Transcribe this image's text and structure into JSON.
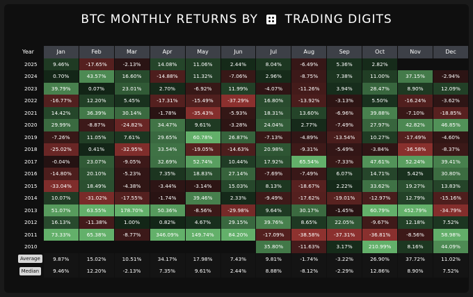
{
  "title": {
    "left": "BTC MONTHLY RETURNS BY",
    "right": "TRADING DIGITS"
  },
  "header": {
    "year_label": "Year",
    "months": [
      "Jan",
      "Feb",
      "Mar",
      "Apr",
      "May",
      "Jun",
      "Jul",
      "Aug",
      "Sep",
      "Oct",
      "Nov",
      "Dec"
    ]
  },
  "rows": [
    {
      "year": "2025",
      "values": [
        "9.46%",
        "-17.65%",
        "-2.13%",
        "14.08%",
        "11.06%",
        "2.44%",
        "8.04%",
        "-6.49%",
        "5.36%",
        "2.82%",
        "",
        ""
      ]
    },
    {
      "year": "2024",
      "values": [
        "0.70%",
        "43.57%",
        "16.60%",
        "-14.88%",
        "11.32%",
        "-7.06%",
        "2.96%",
        "-8.75%",
        "7.38%",
        "11.00%",
        "37.15%",
        "-2.94%"
      ]
    },
    {
      "year": "2023",
      "values": [
        "39.79%",
        "0.07%",
        "23.01%",
        "2.70%",
        "-6.92%",
        "11.99%",
        "-4.07%",
        "-11.26%",
        "3.94%",
        "28.47%",
        "8.90%",
        "12.09%"
      ]
    },
    {
      "year": "2022",
      "values": [
        "-16.77%",
        "12.20%",
        "5.45%",
        "-17.31%",
        "-15.49%",
        "-37.29%",
        "16.80%",
        "-13.92%",
        "-3.13%",
        "5.50%",
        "-16.24%",
        "-3.62%"
      ]
    },
    {
      "year": "2021",
      "values": [
        "14.42%",
        "36.39%",
        "30.14%",
        "-1.78%",
        "-35.43%",
        "-5.93%",
        "18.31%",
        "13.60%",
        "-6.96%",
        "39.88%",
        "-7.10%",
        "-18.85%"
      ]
    },
    {
      "year": "2020",
      "values": [
        "29.99%",
        "-8.87%",
        "-24.82%",
        "34.47%",
        "9.61%",
        "-3.28%",
        "24.04%",
        "2.77%",
        "-7.49%",
        "27.97%",
        "42.82%",
        "46.85%"
      ]
    },
    {
      "year": "2019",
      "values": [
        "-7.26%",
        "11.05%",
        "7.61%",
        "29.65%",
        "60.78%",
        "26.87%",
        "-7.13%",
        "-4.89%",
        "-13.54%",
        "10.27%",
        "-17.49%",
        "-4.60%"
      ]
    },
    {
      "year": "2018",
      "values": [
        "-25.02%",
        "0.41%",
        "-32.95%",
        "33.54%",
        "-19.05%",
        "-14.63%",
        "20.98%",
        "-9.31%",
        "-5.49%",
        "-3.84%",
        "-36.58%",
        "-8.37%"
      ]
    },
    {
      "year": "2017",
      "values": [
        "-0.04%",
        "23.07%",
        "-9.05%",
        "32.69%",
        "52.74%",
        "10.44%",
        "17.92%",
        "65.54%",
        "-7.33%",
        "47.61%",
        "52.24%",
        "39.41%"
      ]
    },
    {
      "year": "2016",
      "values": [
        "-14.80%",
        "20.10%",
        "-5.23%",
        "7.35%",
        "18.83%",
        "27.14%",
        "-7.69%",
        "-7.49%",
        "6.07%",
        "14.71%",
        "5.42%",
        "30.80%"
      ]
    },
    {
      "year": "2015",
      "values": [
        "-33.04%",
        "18.49%",
        "-4.38%",
        "-3.44%",
        "-3.14%",
        "15.03%",
        "8.13%",
        "-18.67%",
        "2.22%",
        "33.62%",
        "19.27%",
        "13.83%"
      ]
    },
    {
      "year": "2014",
      "values": [
        "10.07%",
        "-31.02%",
        "-17.55%",
        "-1.74%",
        "39.46%",
        "2.33%",
        "-9.49%",
        "-17.62%",
        "-19.01%",
        "-12.97%",
        "12.79%",
        "-15.16%"
      ]
    },
    {
      "year": "2013",
      "values": [
        "51.07%",
        "63.55%",
        "178.70%",
        "50.36%",
        "-8.56%",
        "-29.98%",
        "9.64%",
        "30.17%",
        "-1.45%",
        "60.79%",
        "452.79%",
        "-34.79%"
      ]
    },
    {
      "year": "2012",
      "values": [
        "16.13%",
        "-11.38%",
        "1.00%",
        "0.82%",
        "4.67%",
        "29.15%",
        "39.76%",
        "8.65%",
        "22.05%",
        "-9.67%",
        "12.18%",
        "7.52%"
      ]
    },
    {
      "year": "2011",
      "values": [
        "73.33%",
        "65.38%",
        "-8.77%",
        "346.09%",
        "149.74%",
        "84.20%",
        "-17.09%",
        "-38.58%",
        "-37.31%",
        "-36.81%",
        "-8.56%",
        "58.98%"
      ]
    },
    {
      "year": "2010",
      "values": [
        "",
        "",
        "",
        "",
        "",
        "",
        "35.80%",
        "-11.63%",
        "3.17%",
        "210.99%",
        "8.16%",
        "44.09%"
      ]
    }
  ],
  "stats": [
    {
      "label": "Average",
      "values": [
        "9.87%",
        "15.02%",
        "10.51%",
        "34.17%",
        "17.98%",
        "7.43%",
        "9.81%",
        "-1.74%",
        "-3.22%",
        "26.90%",
        "37.72%",
        "11.02%"
      ]
    },
    {
      "label": "Median",
      "values": [
        "9.46%",
        "12.20%",
        "-2.13%",
        "7.35%",
        "9.61%",
        "2.44%",
        "8.88%",
        "-8.12%",
        "-2.29%",
        "12.86%",
        "8.90%",
        "7.52%"
      ]
    }
  ],
  "colors": {
    "background": "#0f0f0f",
    "header_cell": "#3d4047",
    "positive": "#63b06a",
    "negative": "#c9433f"
  }
}
